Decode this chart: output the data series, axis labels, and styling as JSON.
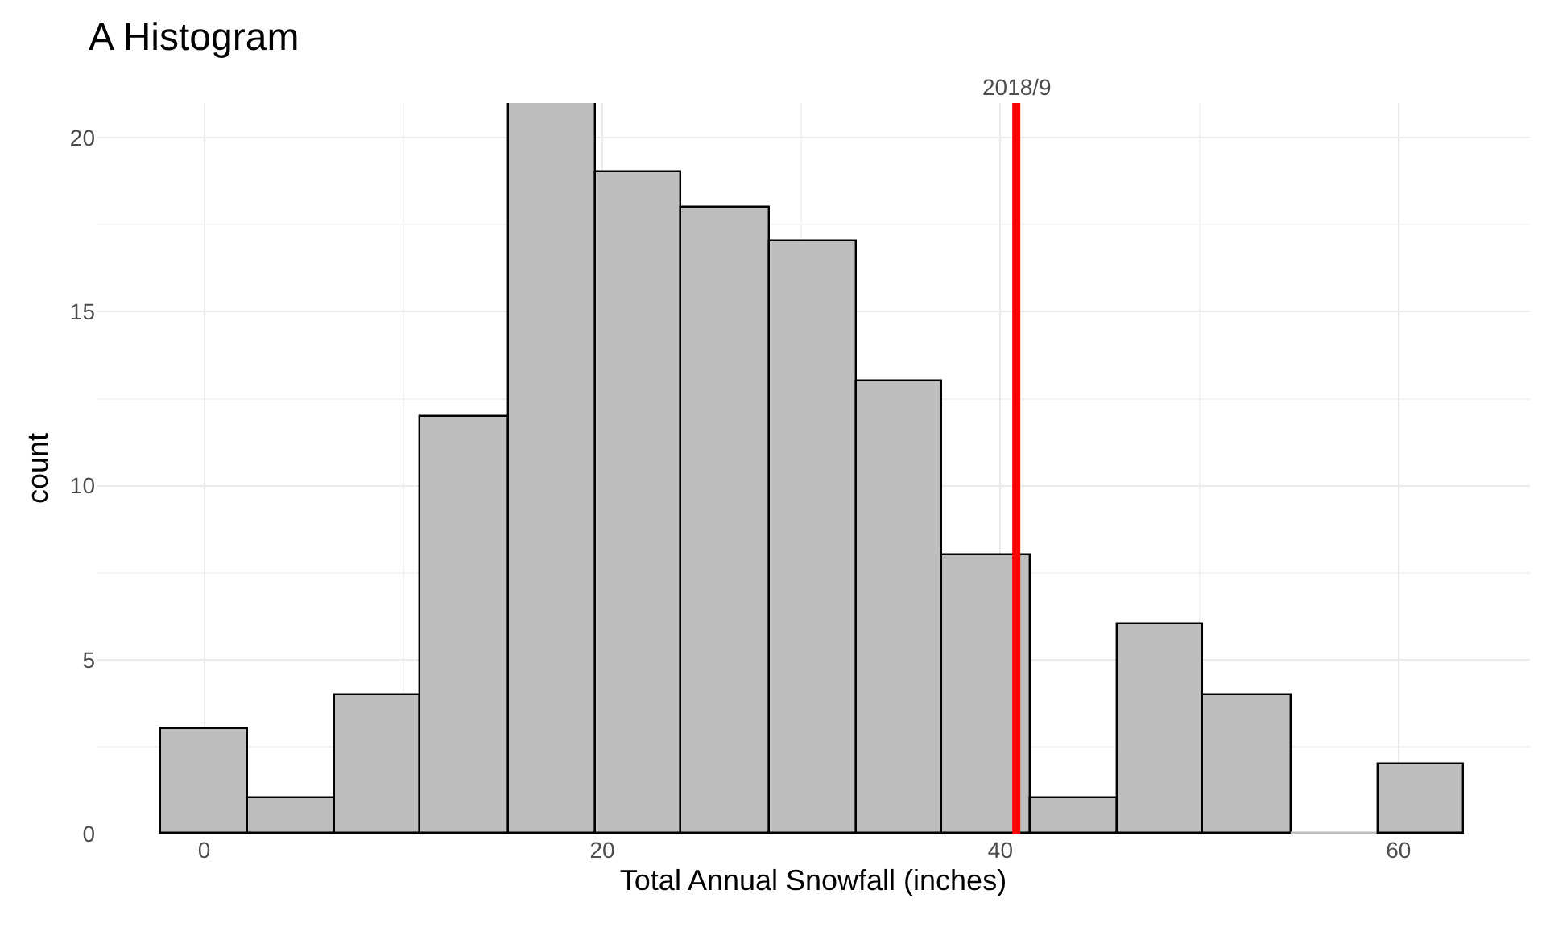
{
  "chart_data": {
    "type": "histogram",
    "title": "A Histogram",
    "xlabel": "Total Annual Snowfall (inches)",
    "ylabel": "count",
    "bins": [
      -2.2,
      2.2,
      6.6,
      10.9,
      15.3,
      19.7,
      24.0,
      28.4,
      32.8,
      37.1,
      41.5,
      45.9,
      50.2,
      54.6,
      59.0,
      63.3
    ],
    "values": [
      3,
      1,
      4,
      12,
      21,
      19,
      18,
      17,
      13,
      8,
      1,
      6,
      4,
      0,
      2
    ],
    "color": "#bebebe",
    "xlim": [
      -5.4,
      66.6
    ],
    "xticks": [
      0,
      20,
      40,
      60
    ],
    "ylim": [
      0,
      21
    ],
    "yticks": [
      0,
      5,
      10,
      15,
      20
    ],
    "grid": true,
    "ref_lines": [
      {
        "axis": "x",
        "value": 40.8,
        "color": "#ff0000"
      }
    ],
    "annotations": [
      {
        "text": "2018/9",
        "x": 40.8,
        "y": 21
      }
    ]
  }
}
